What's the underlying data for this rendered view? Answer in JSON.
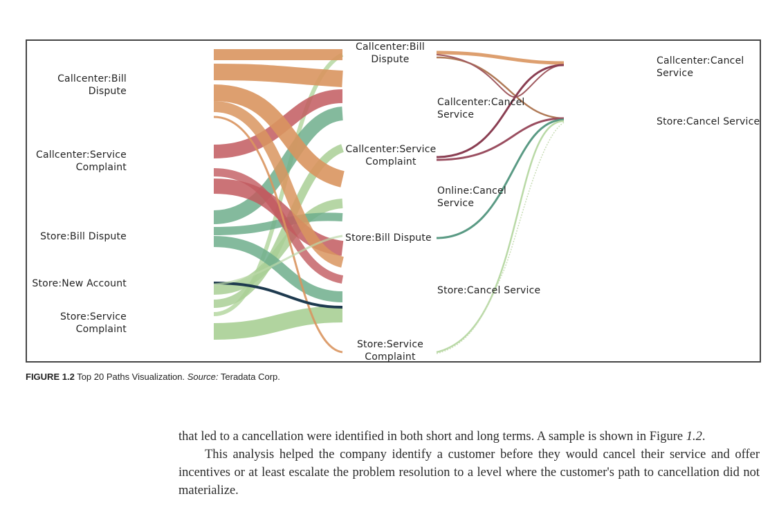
{
  "figure": {
    "caption_number": "FIGURE 1.2",
    "caption_title": "Top 20 Paths Visualization.",
    "caption_source_label": "Source:",
    "caption_source": "Teradata Corp.",
    "chart_data": {
      "type": "sankey",
      "title": "Top 20 Paths Visualization",
      "stages": [
        {
          "name": "stage1",
          "nodes": [
            "Callcenter:Bill Dispute",
            "Callcenter:Service Complaint",
            "Store:Bill Dispute",
            "Store:New Account",
            "Store:Service Complaint"
          ]
        },
        {
          "name": "stage2",
          "nodes": [
            "Callcenter:Bill Dispute",
            "Callcenter:Service Complaint",
            "Store:Bill Dispute",
            "Store:Service Complaint"
          ]
        },
        {
          "name": "stage3",
          "nodes": [
            "Callcenter:Cancel Service",
            "Online:Cancel Service",
            "Store:Cancel Service"
          ]
        },
        {
          "name": "stage4",
          "nodes": [
            "Callcenter:Cancel Service",
            "Store:Cancel Service"
          ]
        }
      ],
      "colors": {
        "callcenter_bill": "#d9955f",
        "callcenter_service": "#c25a5f",
        "store_bill": "#6fae8c",
        "store_new": "#1e3a4f",
        "store_service": "#a9cf95"
      }
    },
    "labels": {
      "s1_callcenter_bill": [
        "Callcenter:Bill",
        "Dispute"
      ],
      "s1_callcenter_service": [
        "Callcenter:Service",
        "Complaint"
      ],
      "s1_store_bill": "Store:Bill Dispute",
      "s1_store_new": "Store:New Account",
      "s1_store_service": [
        "Store:Service",
        "Complaint"
      ],
      "s2_callcenter_bill": [
        "Callcenter:Bill",
        "Dispute"
      ],
      "s2_callcenter_service": [
        "Callcenter:Service",
        "Complaint"
      ],
      "s2_store_bill": "Store:Bill Dispute",
      "s2_store_service": [
        "Store:Service",
        "Complaint"
      ],
      "s3_callcenter_cancel": [
        "Callcenter:Cancel",
        "Service"
      ],
      "s3_online_cancel": [
        "Online:Cancel",
        "Service"
      ],
      "s3_store_cancel": "Store:Cancel Service",
      "s4_callcenter_cancel": [
        "Callcenter:Cancel",
        "Service"
      ],
      "s4_store_cancel": "Store:Cancel Service"
    }
  },
  "body": {
    "para1": "that led to a cancellation were identified in both short and long terms. A sample is shown in Figure ",
    "para1_ref": "1.2",
    "para1_end": ".",
    "para2": "This analysis helped the company identify a customer before they would cancel their service and offer incentives or at least escalate the problem resolution to a level where the customer's path to cancellation did not materialize."
  }
}
